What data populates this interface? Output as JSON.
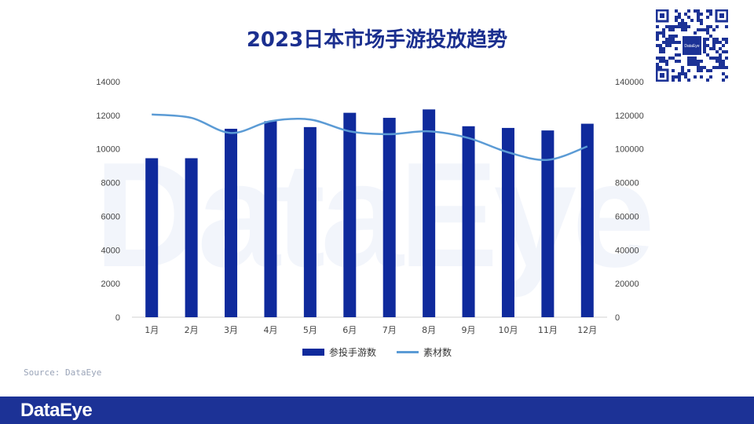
{
  "title": "2023日本市场手游投放趋势",
  "watermark": "DataEye",
  "source": "Source: DataEye",
  "footer": {
    "logo": "DataEye"
  },
  "qr": {
    "center_label": "DataEye"
  },
  "colors": {
    "bar": "#0f2a9c",
    "line": "#5b9bd5",
    "footer": "#1c3296",
    "title": "#1b2f8f"
  },
  "chart_data": {
    "type": "bar",
    "title": "2023日本市场手游投放趋势",
    "categories": [
      "1月",
      "2月",
      "3月",
      "4月",
      "5月",
      "6月",
      "7月",
      "8月",
      "9月",
      "10月",
      "11月",
      "12月"
    ],
    "series": [
      {
        "name": "参投手游数",
        "type": "bar",
        "axis": "left",
        "values": [
          9450,
          9450,
          11200,
          11650,
          11300,
          12150,
          11850,
          12350,
          11350,
          11250,
          11100,
          11500
        ]
      },
      {
        "name": "素材数",
        "type": "line",
        "axis": "right",
        "values": [
          120500,
          118500,
          109500,
          116500,
          117500,
          110500,
          108800,
          110500,
          106500,
          98000,
          93500,
          101500
        ]
      }
    ],
    "y_left": {
      "min": 0,
      "max": 14000,
      "ticks": [
        0,
        2000,
        4000,
        6000,
        8000,
        10000,
        12000,
        14000
      ]
    },
    "y_right": {
      "min": 0,
      "max": 140000,
      "ticks": [
        0,
        20000,
        40000,
        60000,
        80000,
        100000,
        120000,
        140000
      ]
    },
    "grid": false,
    "legend": "bottom"
  }
}
